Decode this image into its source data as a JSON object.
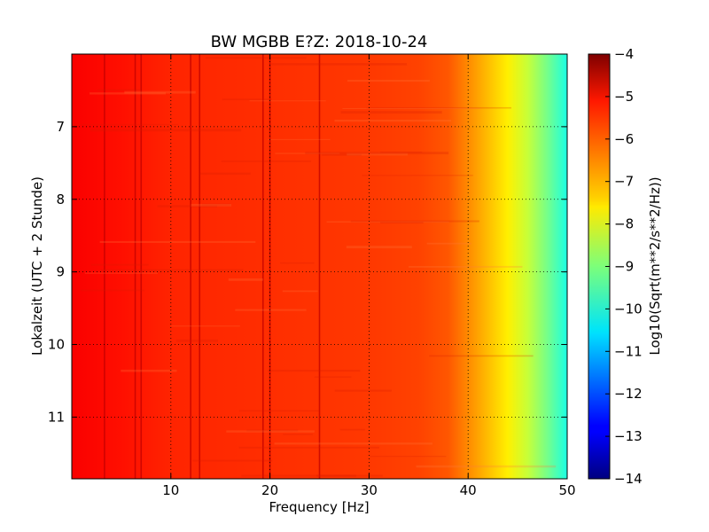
{
  "chart_data": {
    "type": "heatmap",
    "title": "BW MGBB E?Z: 2018-10-24",
    "xlabel": "Frequency [Hz]",
    "ylabel": "Lokalzeit (UTC + 2 Stunde)",
    "xlim": [
      0,
      50
    ],
    "ylim": [
      11.85,
      6.0
    ],
    "y_inverted": true,
    "x_ticks": [
      10,
      20,
      30,
      40,
      50
    ],
    "x_tick_labels": [
      "10",
      "20",
      "30",
      "40",
      "50"
    ],
    "y_ticks": [
      7,
      8,
      9,
      10,
      11
    ],
    "y_tick_labels": [
      "7",
      "8",
      "9",
      "10",
      "11"
    ],
    "grid": true,
    "colormap": "jet",
    "colorbar": {
      "label": "Log10(Sqrt(m**2/s**2/Hz))",
      "range": [
        -14,
        -4
      ],
      "ticks": [
        -4,
        -5,
        -6,
        -7,
        -8,
        -9,
        -10,
        -11,
        -12,
        -13,
        -14
      ],
      "tick_labels": [
        "−4",
        "−5",
        "−6",
        "−7",
        "−8",
        "−9",
        "−10",
        "−11",
        "−12",
        "−13",
        "−14"
      ]
    },
    "spectrum_profile": {
      "frequency_hz": [
        0,
        5,
        10,
        15,
        20,
        25,
        30,
        35,
        38,
        40,
        42,
        44,
        46,
        48,
        50
      ],
      "log10_amplitude": [
        -5.2,
        -5.4,
        -5.6,
        -5.65,
        -5.7,
        -5.75,
        -5.8,
        -5.9,
        -6.1,
        -6.6,
        -7.1,
        -7.6,
        -8.3,
        -9.1,
        -10.0
      ]
    },
    "spectral_lines_hz": [
      3.3,
      6.4,
      7.0,
      12.0,
      12.9,
      19.3,
      20.0,
      25.0
    ]
  }
}
